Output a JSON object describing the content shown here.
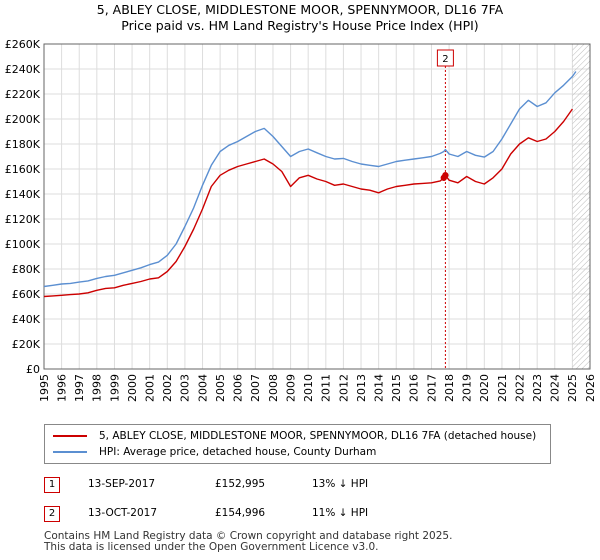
{
  "title_line1": "5, ABLEY CLOSE, MIDDLESTONE MOOR, SPENNYMOOR, DL16 7FA",
  "title_line2": "Price paid vs. HM Land Registry's House Price Index (HPI)",
  "colors": {
    "price_line": "#cc0000",
    "hpi_line": "#5b8fd1",
    "grid": "#dddddd",
    "marker_border": "#cc0000"
  },
  "chart_data": {
    "type": "line",
    "title": "Price paid vs. HM Land Registry's House Price Index (HPI)",
    "xlabel": "",
    "ylabel": "",
    "xlim": [
      1995,
      2026
    ],
    "ylim": [
      0,
      260000
    ],
    "x_ticks": [
      1995,
      1996,
      1997,
      1998,
      1999,
      2000,
      2001,
      2002,
      2003,
      2004,
      2005,
      2006,
      2007,
      2008,
      2009,
      2010,
      2011,
      2012,
      2013,
      2014,
      2015,
      2016,
      2017,
      2018,
      2019,
      2020,
      2021,
      2022,
      2023,
      2024,
      2025,
      2026
    ],
    "y_ticks": [
      0,
      20000,
      40000,
      60000,
      80000,
      100000,
      120000,
      140000,
      160000,
      180000,
      200000,
      220000,
      240000,
      260000
    ],
    "y_tick_labels": [
      "£0",
      "£20K",
      "£40K",
      "£60K",
      "£80K",
      "£100K",
      "£120K",
      "£140K",
      "£160K",
      "£180K",
      "£200K",
      "£220K",
      "£240K",
      "£260K"
    ],
    "grid": true,
    "hatched_region_from": 2025.0,
    "series": [
      {
        "name": "5, ABLEY CLOSE, MIDDLESTONE MOOR, SPENNYMOOR, DL16 7FA (detached house)",
        "color": "#cc0000",
        "x": [
          1995.0,
          1995.5,
          1996.0,
          1996.5,
          1997.0,
          1997.5,
          1998.0,
          1998.5,
          1999.0,
          1999.5,
          2000.0,
          2000.5,
          2001.0,
          2001.5,
          2002.0,
          2002.5,
          2003.0,
          2003.5,
          2004.0,
          2004.5,
          2005.0,
          2005.5,
          2006.0,
          2006.5,
          2007.0,
          2007.5,
          2008.0,
          2008.5,
          2009.0,
          2009.5,
          2010.0,
          2010.5,
          2011.0,
          2011.5,
          2012.0,
          2012.5,
          2013.0,
          2013.5,
          2014.0,
          2014.5,
          2015.0,
          2015.5,
          2016.0,
          2016.5,
          2017.0,
          2017.5,
          2017.7,
          2017.79,
          2018.0,
          2018.5,
          2019.0,
          2019.5,
          2020.0,
          2020.5,
          2021.0,
          2021.5,
          2022.0,
          2022.5,
          2023.0,
          2023.5,
          2024.0,
          2024.5,
          2025.0
        ],
        "values": [
          58000,
          58500,
          59000,
          59500,
          60000,
          61000,
          63000,
          64500,
          65000,
          67000,
          68500,
          70000,
          72000,
          73000,
          78000,
          86000,
          98000,
          112000,
          128000,
          146000,
          155000,
          159000,
          162000,
          164000,
          166000,
          168000,
          164000,
          158000,
          146000,
          153000,
          155000,
          152000,
          150000,
          147000,
          148000,
          146000,
          144000,
          143000,
          141000,
          144000,
          146000,
          147000,
          148000,
          148500,
          149000,
          150500,
          152995,
          154996,
          151000,
          149000,
          154000,
          150000,
          148000,
          153000,
          160000,
          172000,
          180000,
          185000,
          182000,
          184000,
          190000,
          198000,
          208000
        ]
      },
      {
        "name": "HPI: Average price, detached house, County Durham",
        "color": "#5b8fd1",
        "x": [
          1995.0,
          1995.5,
          1996.0,
          1996.5,
          1997.0,
          1997.5,
          1998.0,
          1998.5,
          1999.0,
          1999.5,
          2000.0,
          2000.5,
          2001.0,
          2001.5,
          2002.0,
          2002.5,
          2003.0,
          2003.5,
          2004.0,
          2004.5,
          2005.0,
          2005.5,
          2006.0,
          2006.5,
          2007.0,
          2007.5,
          2008.0,
          2008.5,
          2009.0,
          2009.5,
          2010.0,
          2010.5,
          2011.0,
          2011.5,
          2012.0,
          2012.5,
          2013.0,
          2013.5,
          2014.0,
          2014.5,
          2015.0,
          2015.5,
          2016.0,
          2016.5,
          2017.0,
          2017.5,
          2017.7,
          2017.79,
          2018.0,
          2018.5,
          2019.0,
          2019.5,
          2020.0,
          2020.5,
          2021.0,
          2021.5,
          2022.0,
          2022.5,
          2023.0,
          2023.5,
          2024.0,
          2024.5,
          2025.0,
          2025.2
        ],
        "values": [
          66000,
          67000,
          68000,
          68500,
          69500,
          70500,
          72500,
          74000,
          75000,
          77000,
          79000,
          81000,
          83500,
          85500,
          91000,
          100000,
          114000,
          129000,
          147000,
          163000,
          174000,
          179000,
          182000,
          186000,
          190000,
          192500,
          186000,
          178000,
          170000,
          174000,
          176000,
          173000,
          170000,
          168000,
          168500,
          166000,
          164000,
          163000,
          162000,
          164000,
          166000,
          167000,
          168000,
          169000,
          170000,
          172500,
          174000,
          175500,
          172000,
          170000,
          174000,
          171000,
          169500,
          174000,
          184000,
          196000,
          208000,
          215000,
          210000,
          213000,
          221000,
          227000,
          234000,
          238000
        ]
      }
    ],
    "transactions": [
      {
        "label": "1",
        "date": "13-SEP-2017",
        "price": "£152,995",
        "hpi_diff": "13% ↓ HPI",
        "x": 2017.7,
        "y": 152995
      },
      {
        "label": "2",
        "date": "13-OCT-2017",
        "price": "£154,996",
        "hpi_diff": "11% ↓ HPI",
        "x": 2017.79,
        "y": 154996
      }
    ]
  },
  "footer_line1": "Contains HM Land Registry data © Crown copyright and database right 2025.",
  "footer_line2": "This data is licensed under the Open Government Licence v3.0."
}
